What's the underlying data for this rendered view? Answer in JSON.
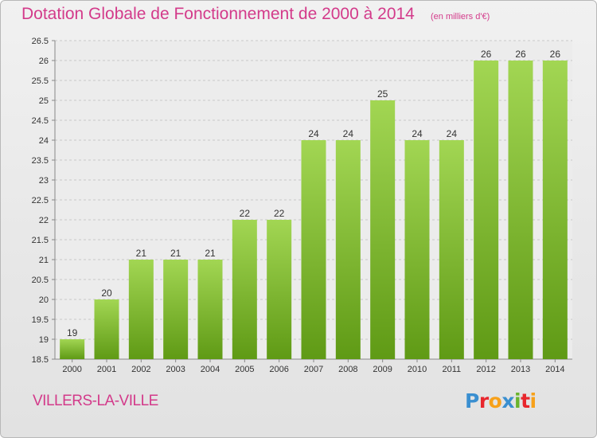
{
  "title": "Dotation Globale de Fonctionnement de 2000 à 2014",
  "subtitle": "(en milliers d'€)",
  "place": "VILLERS-LA-VILLE",
  "logo": {
    "text": "Proxiti",
    "colors": [
      "#3a8fd0",
      "#e8262d",
      "#f7a11a",
      "#3a8fd0",
      "#6ab42d",
      "#e8262d",
      "#f7a11a"
    ]
  },
  "colors": {
    "title": "#d33a8a",
    "bar_top": "#9fd44f",
    "bar_bottom": "#5f9a15",
    "grid": "#c8c8c8",
    "text": "#333333"
  },
  "chart_data": {
    "type": "bar",
    "title": "Dotation Globale de Fonctionnement de 2000 à 2014",
    "subtitle": "(en milliers d'€)",
    "xlabel": "",
    "ylabel": "",
    "categories": [
      "2000",
      "2001",
      "2002",
      "2003",
      "2004",
      "2005",
      "2006",
      "2007",
      "2008",
      "2009",
      "2010",
      "2011",
      "2012",
      "2013",
      "2014"
    ],
    "values": [
      19,
      20,
      21,
      21,
      21,
      22,
      22,
      24,
      24,
      25,
      24,
      24,
      26,
      26,
      26
    ],
    "data_labels": [
      "19",
      "20",
      "21",
      "21",
      "21",
      "22",
      "22",
      "24",
      "24",
      "25",
      "24",
      "24",
      "26",
      "26",
      "26"
    ],
    "ylim": [
      18.5,
      26.5
    ],
    "yticks": [
      "18.5",
      "19",
      "19.5",
      "20",
      "20.5",
      "21",
      "21.5",
      "22",
      "22.5",
      "23",
      "23.5",
      "24",
      "24.5",
      "25",
      "25.5",
      "26",
      "26.5"
    ],
    "grid": true,
    "legend": "none"
  }
}
